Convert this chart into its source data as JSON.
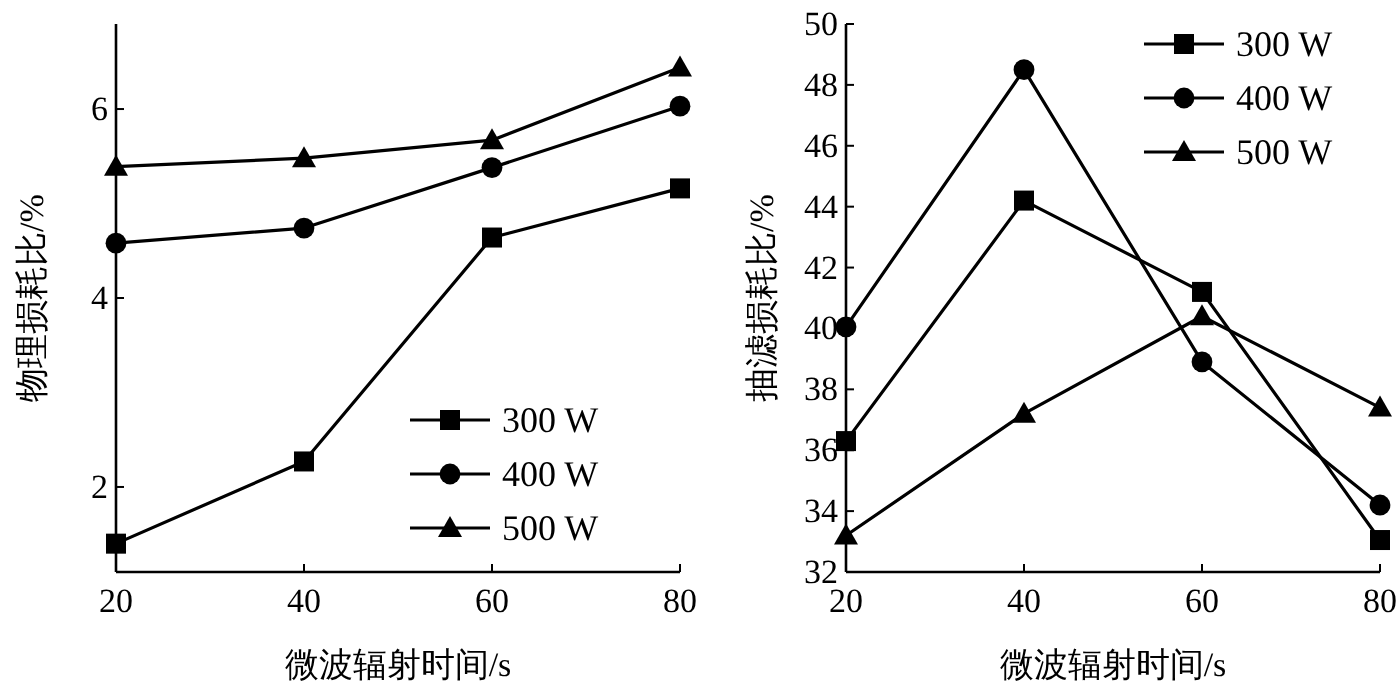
{
  "chart_data": [
    {
      "type": "line",
      "xlabel": "微波辐射时间/s",
      "ylabel": "物理损耗比/%",
      "x": [
        20,
        40,
        60,
        80
      ],
      "xlim": [
        20,
        80
      ],
      "xticks": [
        20,
        40,
        60,
        80
      ],
      "ylim": [
        1.1,
        6.9
      ],
      "yticks": [
        2,
        4,
        6
      ],
      "legend": "bottom right",
      "series": [
        {
          "name": "300 W",
          "color": "#000000",
          "marker": "square",
          "values": [
            1.4,
            2.27,
            4.64,
            5.16
          ]
        },
        {
          "name": "400 W",
          "color": "#000000",
          "marker": "circle",
          "values": [
            4.58,
            4.74,
            5.38,
            6.03
          ]
        },
        {
          "name": "500 W",
          "color": "#000000",
          "marker": "triangle",
          "values": [
            5.39,
            5.48,
            5.67,
            6.44
          ]
        }
      ]
    },
    {
      "type": "line",
      "xlabel": "微波辐射时间/s",
      "ylabel": "抽滤损耗比/%",
      "x": [
        20,
        40,
        60,
        80
      ],
      "xlim": [
        20,
        80
      ],
      "xticks": [
        20,
        40,
        60,
        80
      ],
      "ylim": [
        32,
        50
      ],
      "yticks": [
        32,
        34,
        36,
        38,
        40,
        42,
        44,
        46,
        48,
        50
      ],
      "legend": "top right",
      "series": [
        {
          "name": "300 W",
          "color": "#000000",
          "marker": "square",
          "values": [
            36.3,
            44.2,
            41.2,
            33.05
          ]
        },
        {
          "name": "400 W",
          "color": "#000000",
          "marker": "circle",
          "values": [
            40.05,
            48.5,
            38.9,
            34.2
          ]
        },
        {
          "name": "500 W",
          "color": "#000000",
          "marker": "triangle",
          "values": [
            33.2,
            37.2,
            40.4,
            37.4
          ]
        }
      ]
    }
  ]
}
